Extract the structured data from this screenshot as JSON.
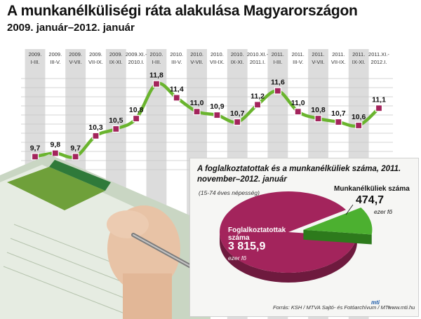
{
  "title": "A munkanélküliségi ráta alakulása Magyarországon",
  "subtitle": "2009. január–2012. január",
  "chart_data": [
    {
      "type": "line",
      "title": "A munkanélküliségi ráta alakulása Magyarországon",
      "subtitle": "2009. január–2012. január",
      "categories": [
        [
          "2009.",
          "I-III."
        ],
        [
          "2009.",
          "III-V."
        ],
        [
          "2009.",
          "V-VII."
        ],
        [
          "2009.",
          "VII-IX."
        ],
        [
          "2009.",
          "IX-XI."
        ],
        [
          "2009.XI.-",
          "2010.I."
        ],
        [
          "2010.",
          "I-III."
        ],
        [
          "2010.",
          "III-V."
        ],
        [
          "2010.",
          "V-VII."
        ],
        [
          "2010.",
          "VII-IX."
        ],
        [
          "2010.",
          "IX-XI."
        ],
        [
          "2010.XI.-",
          "2011.I."
        ],
        [
          "2011.",
          "I-III."
        ],
        [
          "2011.",
          "III-V."
        ],
        [
          "2011.",
          "V-VII."
        ],
        [
          "2011.",
          "VII-IX."
        ],
        [
          "2011.",
          "IX-XI."
        ],
        [
          "2011.XI.-",
          "2012.I."
        ]
      ],
      "values": [
        9.7,
        9.8,
        9.7,
        10.3,
        10.5,
        10.8,
        11.8,
        11.4,
        11.0,
        10.9,
        10.7,
        11.2,
        11.6,
        11.0,
        10.8,
        10.7,
        10.6,
        11.1
      ],
      "labels": [
        "9,7",
        "9,8",
        "9,7",
        "10,3",
        "10,5",
        "10,8",
        "11,8",
        "11,4",
        "11,0",
        "10,9",
        "10,7",
        "11,2",
        "11,6",
        "11,0",
        "10,8",
        "10,7",
        "10,6",
        "11,1"
      ],
      "ylim": [
        9.0,
        12.3
      ],
      "grid": true,
      "highlighted_columns": [
        0,
        2,
        4,
        6,
        8,
        10,
        12,
        14,
        16
      ],
      "colors": {
        "line": "#6ab42e",
        "marker": "#a3245c",
        "stripe": "#dcdcdc",
        "grid": "#c8c8c8"
      }
    },
    {
      "type": "pie",
      "title": "A foglalkoztatottak és a munkanélküliek száma, 2011. november–2012. január",
      "subtitle": "(15-74 éves népesség)",
      "slices": [
        {
          "name": "Foglalkoztatottak száma",
          "value": 3815.9,
          "label": "3 815,9",
          "unit": "ezer fő",
          "color": "#a3245c"
        },
        {
          "name": "Munkanélküliek száma",
          "value": 474.7,
          "label": "474,7",
          "unit": "ezer fő",
          "color": "#4cb030"
        }
      ]
    }
  ],
  "footer": {
    "source": "Forrás: KSH / MTVA Sajtó- és Fotóarchívum / MTI",
    "logo": "mti",
    "web": "www.mti.hu"
  }
}
